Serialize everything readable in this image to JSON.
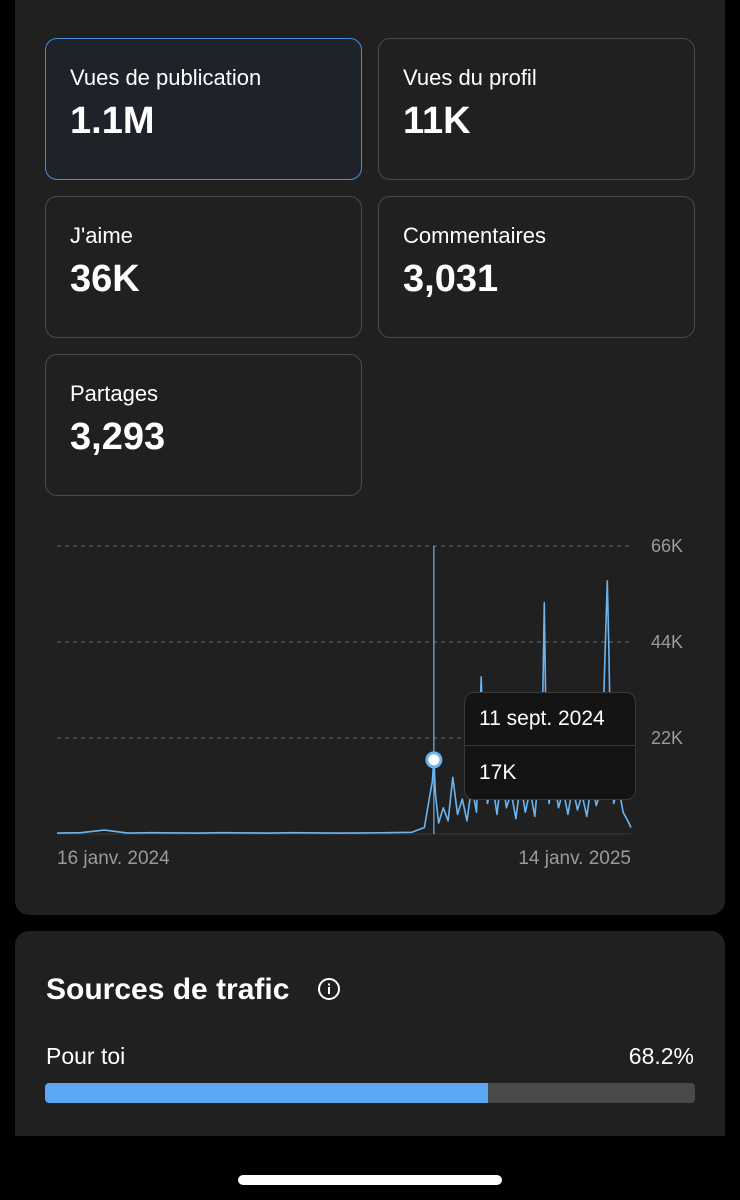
{
  "metrics": [
    {
      "label": "Vues de publication",
      "value": "1.1M",
      "selected": true
    },
    {
      "label": "Vues du profil",
      "value": "11K",
      "selected": false
    },
    {
      "label": "J'aime",
      "value": "36K",
      "selected": false
    },
    {
      "label": "Commentaires",
      "value": "3,031",
      "selected": false
    },
    {
      "label": "Partages",
      "value": "3,293",
      "selected": false
    }
  ],
  "chart_data": {
    "type": "line",
    "y_ticks": [
      "66K",
      "44K",
      "22K"
    ],
    "ylim": [
      0,
      66000
    ],
    "x_start_label": "16 janv. 2024",
    "x_end_label": "14 janv. 2025",
    "color": "#6cb4f0",
    "grid": true,
    "series": [
      {
        "x": [
          "2024-01-16",
          "2024-01-31",
          "2024-02-15",
          "2024-03-01",
          "2024-03-16",
          "2024-03-31",
          "2024-04-15",
          "2024-04-30",
          "2024-05-15",
          "2024-05-30",
          "2024-06-14",
          "2024-06-29",
          "2024-07-14",
          "2024-07-29",
          "2024-08-13",
          "2024-08-28",
          "2024-09-05",
          "2024-09-08",
          "2024-09-10",
          "2024-09-11",
          "2024-09-12",
          "2024-09-14",
          "2024-09-17",
          "2024-09-20",
          "2024-09-23",
          "2024-09-26",
          "2024-09-29",
          "2024-10-02",
          "2024-10-05",
          "2024-10-08",
          "2024-10-10",
          "2024-10-11",
          "2024-10-12",
          "2024-10-15",
          "2024-10-18",
          "2024-10-21",
          "2024-10-24",
          "2024-10-27",
          "2024-10-30",
          "2024-11-02",
          "2024-11-05",
          "2024-11-08",
          "2024-11-11",
          "2024-11-14",
          "2024-11-17",
          "2024-11-19",
          "2024-11-20",
          "2024-11-21",
          "2024-11-23",
          "2024-11-26",
          "2024-11-29",
          "2024-12-02",
          "2024-12-05",
          "2024-12-08",
          "2024-12-11",
          "2024-12-14",
          "2024-12-17",
          "2024-12-20",
          "2024-12-23",
          "2024-12-26",
          "2024-12-28",
          "2024-12-30",
          "2024-12-31",
          "2025-01-01",
          "2025-01-03",
          "2025-01-06",
          "2025-01-09",
          "2025-01-12",
          "2025-01-14"
        ],
        "y": [
          200,
          300,
          900,
          200,
          300,
          250,
          200,
          300,
          250,
          200,
          300,
          250,
          200,
          250,
          300,
          400,
          1500,
          8000,
          12000,
          17000,
          9000,
          2500,
          6000,
          3000,
          13000,
          4500,
          8000,
          3000,
          11000,
          5000,
          25000,
          36000,
          22000,
          7000,
          12000,
          4500,
          14000,
          6000,
          9500,
          3500,
          12000,
          5000,
          10000,
          4000,
          16000,
          30000,
          53000,
          28000,
          7000,
          13000,
          6000,
          10000,
          4500,
          11000,
          5500,
          9000,
          4000,
          12000,
          6500,
          10000,
          35000,
          58000,
          42000,
          20000,
          7000,
          11000,
          5000,
          3000,
          1500
        ]
      }
    ],
    "tooltip": {
      "date": "11 sept. 2024",
      "value": "17K"
    }
  },
  "traffic": {
    "title": "Sources de trafic",
    "source_label": "Pour toi",
    "source_percent_text": "68.2%",
    "source_percent": 68.2
  }
}
